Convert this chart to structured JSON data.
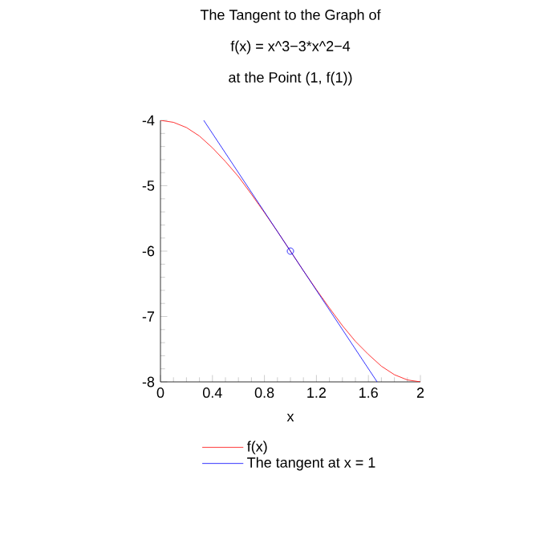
{
  "chart_data": {
    "type": "line",
    "title": "The Tangent to the Graph of",
    "subtitle": "f(x) = x^3−3*x^2−4",
    "annotations": [
      "at the Point (1, f(1))"
    ],
    "xlabel": "x",
    "x": [
      0,
      0.1,
      0.2,
      0.3,
      0.4,
      0.5,
      0.6,
      0.7,
      0.8,
      0.9,
      1.0,
      1.1,
      1.2,
      1.3,
      1.4,
      1.5,
      1.6,
      1.7,
      1.8,
      1.9,
      2.0
    ],
    "series": [
      {
        "name": "f(x)",
        "color": "#ff0000",
        "values": [
          -4,
          -4.03,
          -4.11,
          -4.24,
          -4.42,
          -4.63,
          -4.86,
          -5.13,
          -5.41,
          -5.7,
          -6,
          -6.3,
          -6.59,
          -6.87,
          -7.14,
          -7.38,
          -7.58,
          -7.76,
          -7.89,
          -7.97,
          -8
        ]
      },
      {
        "name": "The tangent at x = 1",
        "color": "#0000ff",
        "x": [
          0.333,
          1.667
        ],
        "values": [
          -4,
          -8
        ]
      },
      {
        "type": "scatter",
        "color": "#0000ff",
        "marker": "circle",
        "x": [
          1
        ],
        "values": [
          -6
        ]
      }
    ],
    "xlim": [
      0,
      2
    ],
    "ylim": [
      -8,
      -4
    ],
    "xticks": [
      0,
      0.4,
      0.8,
      1.2,
      1.6,
      2
    ],
    "yticks": [
      -8,
      -7,
      -6,
      -5,
      -4
    ],
    "legend": "bottom",
    "grid": false
  }
}
